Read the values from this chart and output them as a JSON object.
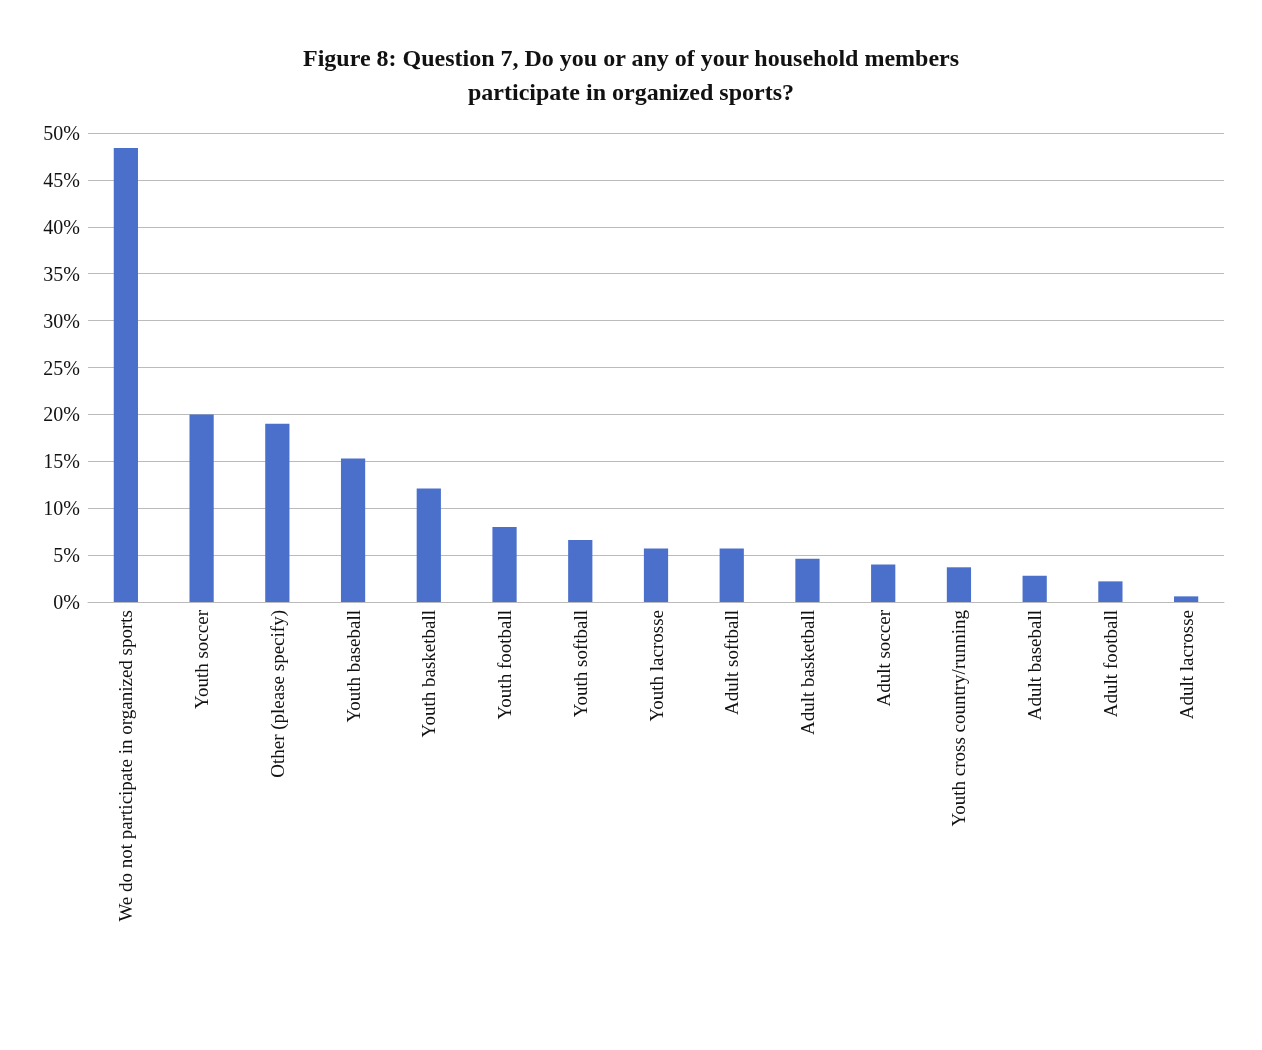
{
  "chart_data": {
    "type": "bar",
    "title": "Figure 8: Question 7, Do you or any of your household members\nparticipate in organized sports?",
    "categories": [
      "We do not participate in organized sports",
      "Youth soccer",
      "Other (please specify)",
      "Youth baseball",
      "Youth basketball",
      "Youth football",
      "Youth softball",
      "Youth lacrosse",
      "Adult softball",
      "Adult basketball",
      "Adult soccer",
      "Youth cross country/running",
      "Adult baseball",
      "Adult football",
      "Adult lacrosse"
    ],
    "values": [
      48.4,
      20,
      19,
      15.3,
      12.1,
      8,
      6.6,
      5.7,
      5.7,
      4.6,
      4,
      3.7,
      2.8,
      2.2,
      0.6
    ],
    "color": "#4a70cc",
    "ylim": [
      0,
      50
    ],
    "yticks": [
      {
        "value": 0,
        "label": "0%"
      },
      {
        "value": 5,
        "label": "5%"
      },
      {
        "value": 10,
        "label": "10%"
      },
      {
        "value": 15,
        "label": "15%"
      },
      {
        "value": 20,
        "label": "20%"
      },
      {
        "value": 25,
        "label": "25%"
      },
      {
        "value": 30,
        "label": "30%"
      },
      {
        "value": 35,
        "label": "35%"
      },
      {
        "value": 40,
        "label": "40%"
      },
      {
        "value": 45,
        "label": "45%"
      },
      {
        "value": 50,
        "label": "50%"
      }
    ],
    "grid": "y"
  }
}
